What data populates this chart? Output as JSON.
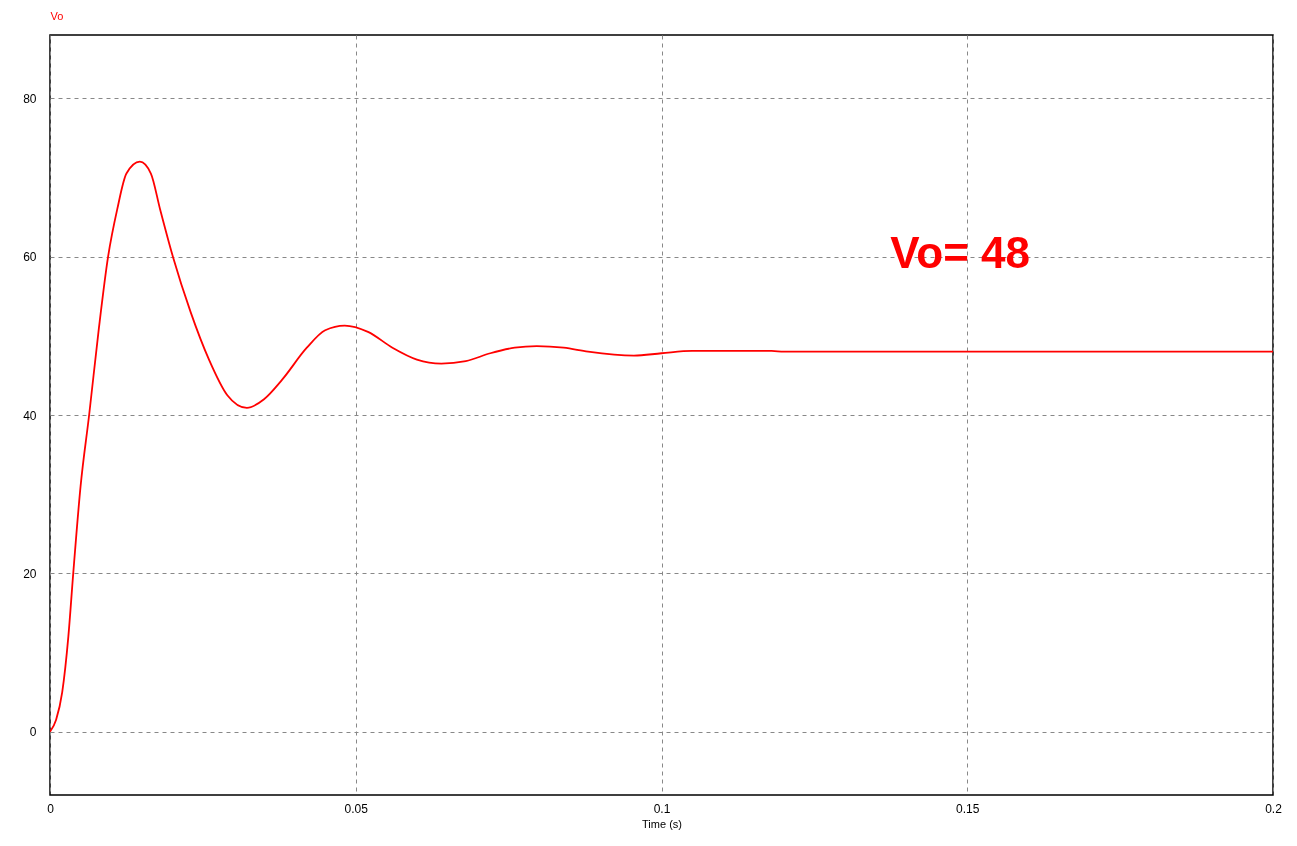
{
  "chart_data": {
    "type": "line",
    "xlabel": "Time (s)",
    "ylabel": "Vo",
    "annotations": [
      "Vo= 48"
    ],
    "x": [
      0,
      0.001,
      0.002,
      0.003,
      0.0038,
      0.005,
      0.0064,
      0.008,
      0.0095,
      0.011,
      0.0125,
      0.0147,
      0.0165,
      0.018,
      0.0201,
      0.023,
      0.026,
      0.029,
      0.0322,
      0.035,
      0.038,
      0.042,
      0.045,
      0.0482,
      0.052,
      0.056,
      0.06,
      0.064,
      0.068,
      0.072,
      0.076,
      0.0796,
      0.084,
      0.088,
      0.0955,
      0.1,
      0.105,
      0.118,
      0.12,
      0.2
    ],
    "series": [
      {
        "color": "#ff0000",
        "values": [
          0,
          1.5,
          5,
          12,
          20,
          31,
          40,
          51,
          60,
          66,
          70.5,
          72,
          70.5,
          66,
          60,
          53,
          47,
          42.5,
          40.9,
          42,
          44.5,
          48.5,
          50.7,
          51.3,
          50.5,
          48.5,
          47,
          46.5,
          46.8,
          47.8,
          48.5,
          48.7,
          48.5,
          48,
          47.5,
          47.8,
          48.1,
          48.1,
          48,
          48
        ]
      }
    ],
    "xlim": [
      0,
      0.2
    ],
    "ylim": [
      -8,
      88
    ],
    "xticks": [
      0,
      0.05,
      0.1,
      0.15,
      0.2
    ],
    "yticks": [
      0,
      20,
      40,
      60,
      80
    ],
    "grid": true,
    "marker": "none",
    "line_style": "solid"
  }
}
